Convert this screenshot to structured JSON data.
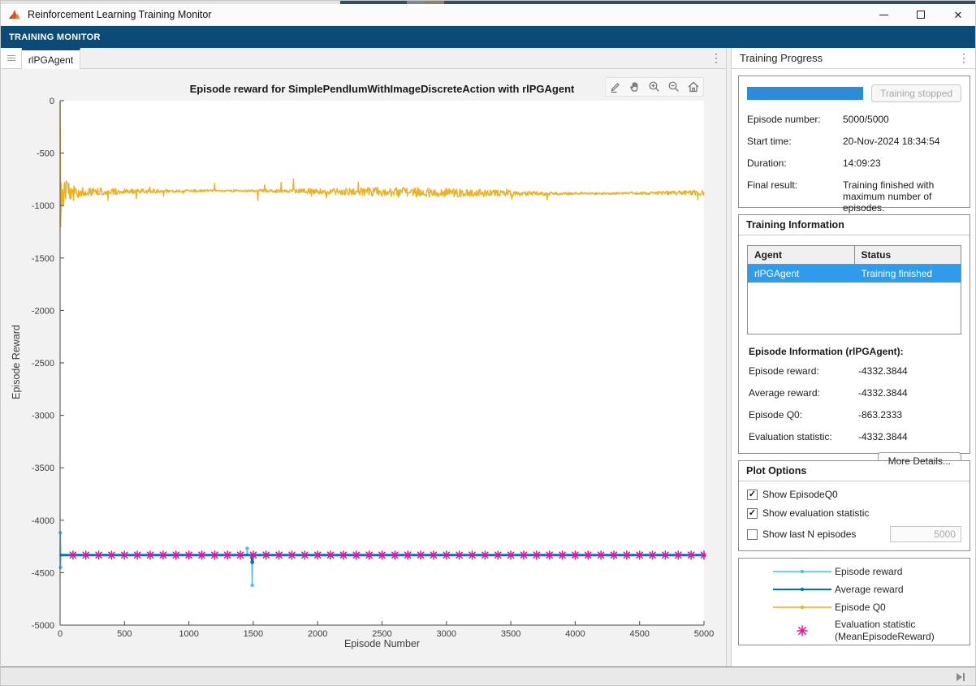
{
  "window": {
    "title": "Reinforcement Learning Training Monitor"
  },
  "toolstrip": {
    "label": "TRAINING MONITOR"
  },
  "tabbar": {
    "active_tab": "rlPGAgent"
  },
  "right_panel": {
    "header": "Training Progress",
    "progress": {
      "value_percent": 100,
      "bar_color": "#2e8bd8",
      "button_label": "Training stopped"
    },
    "fields": [
      {
        "label": "Episode number:",
        "value": "5000/5000"
      },
      {
        "label": "Start time:",
        "value": "20-Nov-2024 18:34:54"
      },
      {
        "label": "Duration:",
        "value": "14:09:23"
      },
      {
        "label": "Final result:",
        "value": "Training finished with maximum number of episodes."
      }
    ],
    "training_information": {
      "title": "Training Information",
      "table": {
        "columns": [
          "Agent",
          "Status"
        ],
        "rows": [
          {
            "agent": "rlPGAgent",
            "status": "Training finished",
            "selected": true
          }
        ]
      },
      "episode_info_title": "Episode Information (rlPGAgent):",
      "episode_fields": [
        {
          "label": "Episode reward:",
          "value": "-4332.3844"
        },
        {
          "label": "Average reward:",
          "value": "-4332.3844"
        },
        {
          "label": "Episode Q0:",
          "value": "-863.2333"
        },
        {
          "label": "Evaluation statistic:",
          "value": "-4332.3844"
        }
      ],
      "more_details_label": "More Details..."
    },
    "plot_options": {
      "title": "Plot Options",
      "checkboxes": [
        {
          "label": "Show EpisodeQ0",
          "checked": true
        },
        {
          "label": "Show evaluation statistic",
          "checked": true
        },
        {
          "label": "Show last N episodes",
          "checked": false
        }
      ],
      "n_episodes_value": "5000"
    },
    "legend": {
      "entries": [
        {
          "label": "Episode reward",
          "series_index": 0
        },
        {
          "label": "Average reward",
          "series_index": 1
        },
        {
          "label": "Episode Q0",
          "series_index": 2
        },
        {
          "label": "Evaluation statistic",
          "label2": "(MeanEpisodeReward)",
          "series_index": 3
        }
      ]
    }
  },
  "chart_data": {
    "type": "line",
    "title": "Episode reward for SimplePendlumWithImageDiscreteAction with rlPGAgent",
    "xlabel": "Episode Number",
    "ylabel": "Episode Reward",
    "xlim": [
      0,
      5000
    ],
    "ylim": [
      -5000,
      0
    ],
    "xticks": [
      0,
      500,
      1000,
      1500,
      2000,
      2500,
      3000,
      3500,
      4000,
      4500,
      5000
    ],
    "yticks": [
      0,
      -500,
      -1000,
      -1500,
      -2000,
      -2500,
      -3000,
      -3500,
      -4000,
      -4500,
      -5000
    ],
    "grid": false,
    "series": [
      {
        "name": "Episode reward",
        "color": "#4DBEEE",
        "style": "line",
        "baseline": -4332.3844,
        "anomalies": [
          {
            "x": 2,
            "y": -4120
          },
          {
            "x": 3,
            "y": -4450
          },
          {
            "x": 1453,
            "y": -4268
          },
          {
            "x": 1492,
            "y": -4620
          }
        ]
      },
      {
        "name": "Average reward",
        "color": "#0072BD",
        "style": "thick-line",
        "baseline": -4332.3844,
        "anomalies": [
          {
            "x": 1492,
            "y": -4400
          }
        ]
      },
      {
        "name": "Episode Q0",
        "color": "#EDB120",
        "style": "noisy-line",
        "initial_points": [
          [
            0,
            0
          ],
          [
            0.6,
            -180
          ],
          [
            1.2,
            -430
          ],
          [
            1.8,
            -260
          ],
          [
            2.4,
            -650
          ],
          [
            3,
            -980
          ],
          [
            3.6,
            -720
          ],
          [
            4.2,
            -1205
          ],
          [
            5,
            -860
          ],
          [
            6,
            -1120
          ],
          [
            7,
            -900
          ],
          [
            8,
            -1060
          ],
          [
            9,
            -780
          ],
          [
            10,
            -1010
          ],
          [
            12,
            -845
          ],
          [
            14,
            -985
          ],
          [
            16,
            -870
          ]
        ],
        "steady": {
          "x_from": 16,
          "x_to": 5000,
          "x_step": 4,
          "mean": -872,
          "drift_amplitude": 13,
          "noise_amplitude": 38,
          "spike_probability": 0.025,
          "spike_amplitude": 105,
          "seed": 20241120
        }
      },
      {
        "name": "Evaluation statistic (MeanEpisodeReward)",
        "color": "#EC109C",
        "style": "asterisk-markers",
        "y": -4332.3844,
        "x_start": 100,
        "x_step": 100,
        "x_end": 5000
      }
    ]
  }
}
